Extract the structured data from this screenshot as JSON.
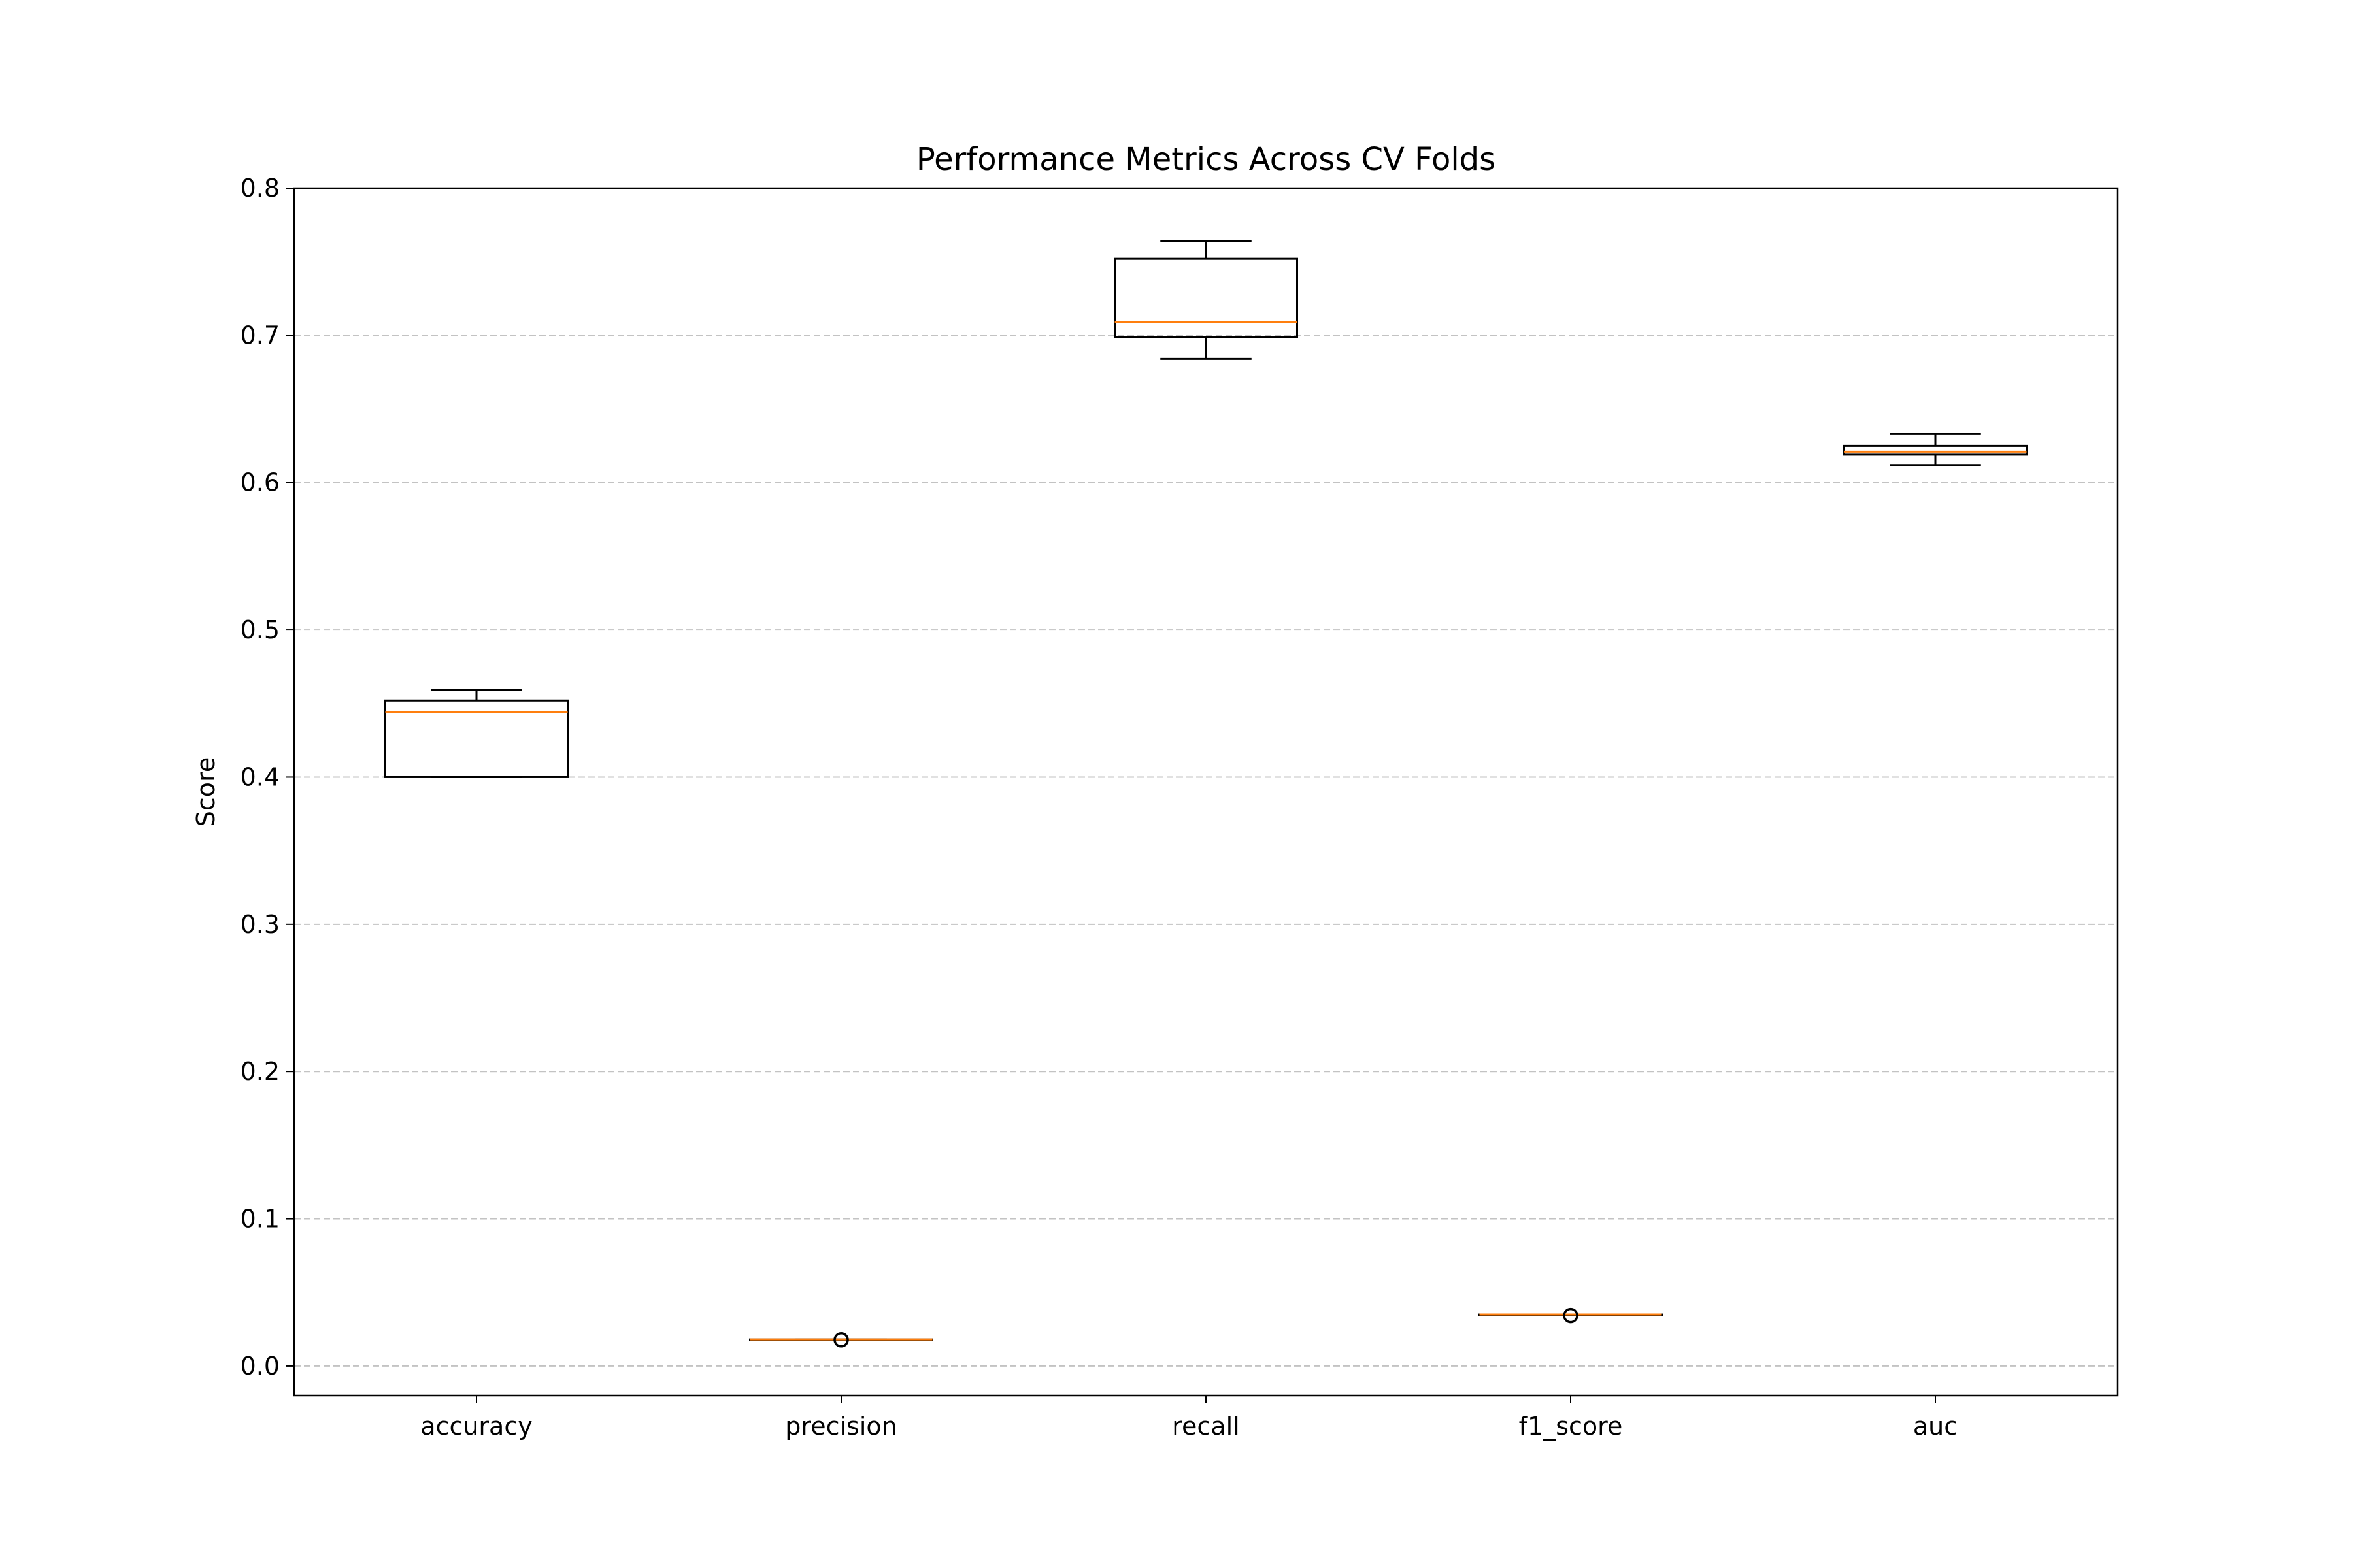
{
  "chart_data": {
    "type": "box",
    "title": "Performance Metrics Across CV Folds",
    "xlabel": "",
    "ylabel": "Score",
    "ylim": [
      -0.02,
      0.8
    ],
    "yticks": [
      0.0,
      0.1,
      0.2,
      0.3,
      0.4,
      0.5,
      0.6,
      0.7,
      0.8
    ],
    "ytick_labels": [
      "0.0",
      "0.1",
      "0.2",
      "0.3",
      "0.4",
      "0.5",
      "0.6",
      "0.7",
      "0.8"
    ],
    "grid": "y-dashed",
    "categories": [
      "accuracy",
      "precision",
      "recall",
      "f1_score",
      "auc"
    ],
    "boxes": [
      {
        "name": "accuracy",
        "whislo": 0.4,
        "q1": 0.4,
        "med": 0.444,
        "q3": 0.452,
        "whishi": 0.459,
        "fliers": []
      },
      {
        "name": "precision",
        "whislo": 0.0181,
        "q1": 0.0181,
        "med": 0.0181,
        "q3": 0.0181,
        "whishi": 0.0181,
        "fliers": [
          0.0178
        ]
      },
      {
        "name": "recall",
        "whislo": 0.684,
        "q1": 0.699,
        "med": 0.709,
        "q3": 0.752,
        "whishi": 0.764,
        "fliers": []
      },
      {
        "name": "f1_score",
        "whislo": 0.035,
        "q1": 0.035,
        "med": 0.035,
        "q3": 0.035,
        "whishi": 0.035,
        "fliers": [
          0.0343
        ]
      },
      {
        "name": "auc",
        "whislo": 0.612,
        "q1": 0.619,
        "med": 0.621,
        "q3": 0.625,
        "whishi": 0.633,
        "fliers": []
      }
    ],
    "colors": {
      "box": "#000000",
      "median": "#ff7f0e",
      "grid": "#b0b0b0",
      "flier": "#000000"
    }
  }
}
